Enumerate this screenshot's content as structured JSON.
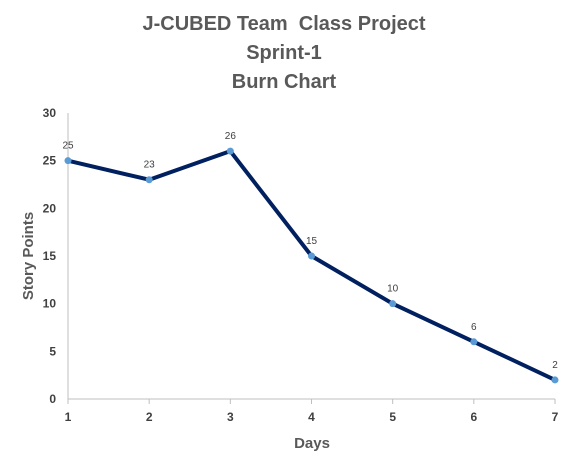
{
  "chart_data": {
    "type": "line",
    "title_lines": [
      "J-CUBED Team  Class Project",
      "Sprint-1",
      "Burn Chart"
    ],
    "xlabel": "Days",
    "ylabel": "Story Points",
    "x": [
      1,
      2,
      3,
      4,
      5,
      6,
      7
    ],
    "series": [
      {
        "values": [
          25,
          23,
          26,
          15,
          10,
          6,
          2
        ],
        "color": "#002060",
        "marker_color": "#5b9bd5"
      }
    ],
    "data_labels": [
      "25",
      "23",
      "26",
      "15",
      "10",
      "6",
      "2"
    ],
    "xlim": [
      1,
      7
    ],
    "ylim": [
      0,
      30
    ],
    "y_ticks": [
      0,
      5,
      10,
      15,
      20,
      25,
      30
    ],
    "x_ticks": [
      1,
      2,
      3,
      4,
      5,
      6,
      7
    ],
    "grid": false,
    "legend": "none",
    "axis_color": "#bfbfbf"
  }
}
